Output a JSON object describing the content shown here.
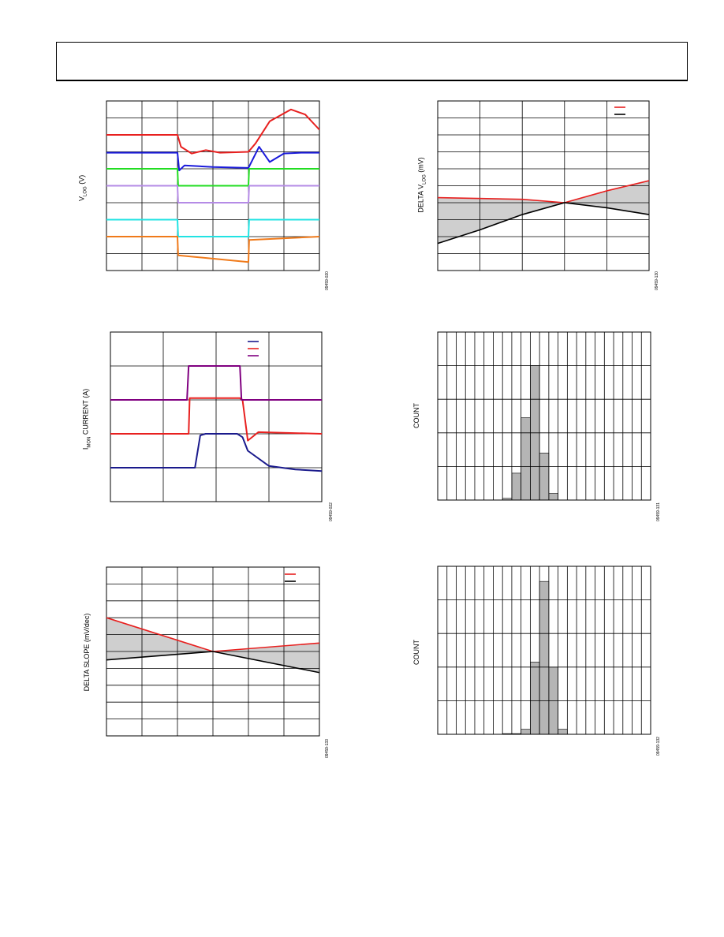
{
  "page": {
    "header_title": ""
  },
  "charts": {
    "c1": {
      "ylabel_main": "V",
      "ylabel_sub": "LOG",
      "ylabel_unit": " (V)",
      "fig_id": "09459-020"
    },
    "c2": {
      "ylabel_main": "DELTA V",
      "ylabel_sub": "LOG",
      "ylabel_unit": " (mV)",
      "fig_id": "09459-130"
    },
    "c3": {
      "ylabel_main": "I",
      "ylabel_sub": "MON",
      "ylabel_unit": " CURRENT (A)",
      "fig_id": "09459-022"
    },
    "c4": {
      "ylabel": "COUNT",
      "fig_id": "09459-131"
    },
    "c5": {
      "ylabel": "DELTA SLOPE (mV/dec)",
      "fig_id": "09459-133"
    },
    "c6": {
      "ylabel": "COUNT",
      "fig_id": "09459-132"
    }
  },
  "chart_data": [
    {
      "type": "line",
      "title": "",
      "xlabel": "",
      "ylabel": "VLOG (V)",
      "grid": true,
      "series": [
        {
          "color": "#e8201f",
          "values": [
            [
              0,
              8
            ],
            [
              2,
              8
            ],
            [
              2.1,
              7.3
            ],
            [
              2.4,
              6.9
            ],
            [
              2.8,
              7.1
            ],
            [
              3.2,
              6.95
            ],
            [
              4,
              7.0
            ],
            [
              4.2,
              7.5
            ],
            [
              4.6,
              8.8
            ],
            [
              5.2,
              9.5
            ],
            [
              5.6,
              9.2
            ],
            [
              6,
              8.3
            ]
          ]
        },
        {
          "color": "#1a1adb",
          "values": [
            [
              0,
              6.95
            ],
            [
              2,
              6.95
            ],
            [
              2.05,
              5.9
            ],
            [
              2.2,
              6.2
            ],
            [
              3,
              6.1
            ],
            [
              4,
              6.05
            ],
            [
              4.3,
              7.3
            ],
            [
              4.6,
              6.4
            ],
            [
              5.0,
              6.9
            ],
            [
              5.5,
              6.95
            ],
            [
              6,
              6.95
            ]
          ]
        },
        {
          "color": "#22dd22",
          "values": [
            [
              0,
              6
            ],
            [
              2,
              6
            ],
            [
              2.02,
              5.0
            ],
            [
              4,
              5.0
            ],
            [
              4.02,
              6
            ],
            [
              6,
              6
            ]
          ]
        },
        {
          "color": "#b58be6",
          "values": [
            [
              0,
              5
            ],
            [
              2,
              5
            ],
            [
              2.02,
              4.0
            ],
            [
              4,
              4.0
            ],
            [
              4.02,
              5
            ],
            [
              6,
              5
            ]
          ]
        },
        {
          "color": "#22e3e3",
          "values": [
            [
              0,
              3
            ],
            [
              2,
              3
            ],
            [
              2.02,
              2.0
            ],
            [
              4,
              2.0
            ],
            [
              4.02,
              3
            ],
            [
              6,
              3
            ]
          ]
        },
        {
          "color": "#f07a1a",
          "values": [
            [
              0,
              2
            ],
            [
              2,
              2
            ],
            [
              2.02,
              0.9
            ],
            [
              4,
              0.5
            ],
            [
              4.02,
              1.8
            ],
            [
              6,
              2
            ]
          ]
        }
      ]
    },
    {
      "type": "area",
      "title": "",
      "xlabel": "",
      "ylabel": "DELTA VLOG (mV)",
      "grid": true,
      "legend": "top-right",
      "series": [
        {
          "color": "#e8201f",
          "values": [
            [
              0,
              0.15
            ],
            [
              2,
              0.1
            ],
            [
              3,
              0
            ],
            [
              4,
              0.35
            ],
            [
              5,
              0.65
            ]
          ]
        },
        {
          "color": "#000000",
          "values": [
            [
              0,
              -1.2
            ],
            [
              1,
              -0.8
            ],
            [
              2,
              -0.35
            ],
            [
              3,
              0
            ],
            [
              4,
              -0.15
            ],
            [
              5,
              -0.35
            ]
          ]
        }
      ]
    },
    {
      "type": "line",
      "title": "",
      "xlabel": "",
      "ylabel": "IMON CURRENT (A)",
      "grid": true,
      "legend": "top-right",
      "series": [
        {
          "color": "#1a1a8c",
          "values": [
            [
              0,
              1
            ],
            [
              1.5,
              1
            ],
            [
              1.6,
              1.0
            ],
            [
              1.7,
              1.95
            ],
            [
              1.8,
              2.0
            ],
            [
              2.4,
              2.0
            ],
            [
              2.5,
              1.9
            ],
            [
              2.6,
              1.5
            ],
            [
              3.0,
              1.05
            ],
            [
              3.5,
              0.95
            ],
            [
              4,
              0.9
            ]
          ]
        },
        {
          "color": "#e8201f",
          "values": [
            [
              0,
              2
            ],
            [
              1.48,
              2
            ],
            [
              1.5,
              3.05
            ],
            [
              2.45,
              3.05
            ],
            [
              2.5,
              3.0
            ],
            [
              2.6,
              1.8
            ],
            [
              2.8,
              2.05
            ],
            [
              4,
              2
            ]
          ]
        },
        {
          "color": "#800080",
          "values": [
            [
              0,
              3
            ],
            [
              1.45,
              3
            ],
            [
              1.48,
              4
            ],
            [
              2.45,
              4
            ],
            [
              2.48,
              3
            ],
            [
              4,
              3
            ]
          ]
        }
      ]
    },
    {
      "type": "bar",
      "title": "",
      "xlabel": "",
      "ylabel": "COUNT",
      "ylim": [
        0,
        5
      ],
      "grid": true,
      "values": [
        0,
        0,
        0,
        0,
        0,
        0,
        0,
        0.05,
        0.8,
        2.45,
        4.0,
        1.4,
        0.2,
        0,
        0,
        0,
        0,
        0,
        0,
        0,
        0,
        0,
        0
      ]
    },
    {
      "type": "area",
      "title": "",
      "xlabel": "",
      "ylabel": "DELTA SLOPE (mV/dec)",
      "grid": true,
      "legend": "top-right",
      "series": [
        {
          "color": "#e8201f",
          "values": [
            [
              0,
              2
            ],
            [
              3,
              0
            ],
            [
              6,
              0.5
            ]
          ]
        },
        {
          "color": "#000000",
          "values": [
            [
              0,
              -0.5
            ],
            [
              3,
              0
            ],
            [
              6,
              -1.25
            ]
          ]
        }
      ]
    },
    {
      "type": "bar",
      "title": "",
      "xlabel": "",
      "ylabel": "COUNT",
      "ylim": [
        0,
        5
      ],
      "grid": true,
      "values": [
        0,
        0,
        0,
        0,
        0,
        0,
        0,
        0.02,
        0.02,
        0.15,
        2.15,
        4.55,
        2.0,
        0.15,
        0,
        0,
        0,
        0,
        0,
        0,
        0,
        0,
        0
      ]
    }
  ]
}
